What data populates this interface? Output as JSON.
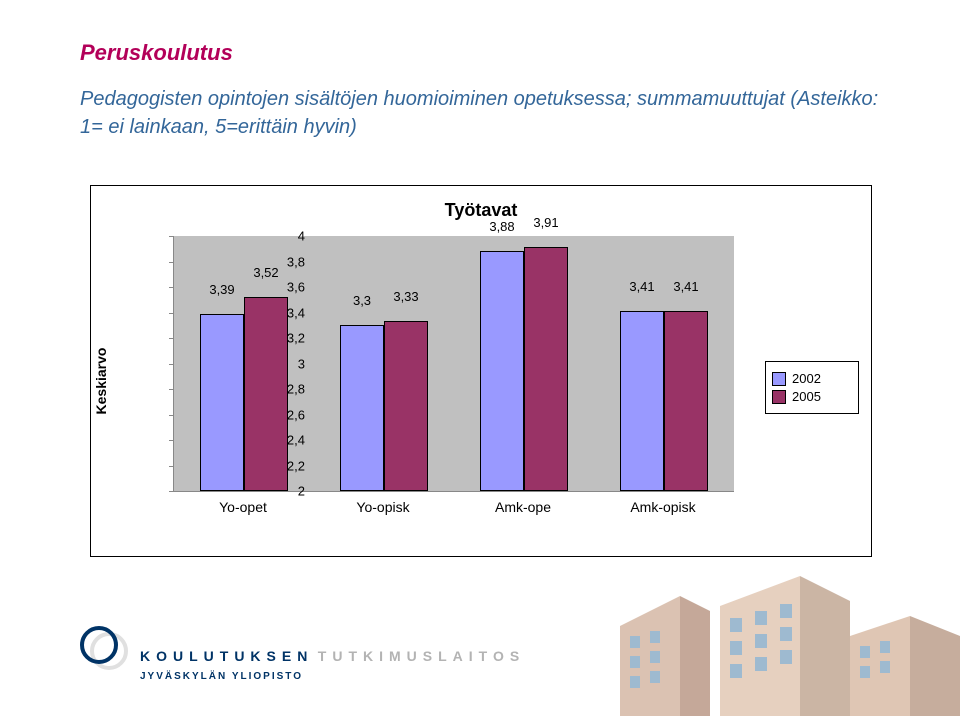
{
  "title": "Peruskoulutus",
  "subtitle": "Pedagogisten opintojen sisältöjen huomioiminen opetuksessa; summamuuttujat (Asteikko: 1= ei lainkaan, 5=erittäin hyvin)",
  "chart": {
    "type": "bar",
    "title": "Työtavat",
    "y_axis_label": "Keskiarvo",
    "y_min": 2,
    "y_max": 4,
    "y_ticks": [
      "2",
      "2,2",
      "2,4",
      "2,6",
      "2,8",
      "3",
      "3,2",
      "3,4",
      "3,6",
      "3,8",
      "4"
    ],
    "y_tick_values": [
      2,
      2.2,
      2.4,
      2.6,
      2.8,
      3,
      3.2,
      3.4,
      3.6,
      3.8,
      4
    ],
    "plot_background": "#c0c0c0",
    "categories": [
      "Yo-opet",
      "Yo-opisk",
      "Amk-ope",
      "Amk-opisk"
    ],
    "series": [
      {
        "name": "2002",
        "color": "#9999ff",
        "values": [
          3.39,
          3.3,
          3.88,
          3.41
        ],
        "labels": [
          "3,39",
          "3,3",
          "3,88",
          "3,41"
        ]
      },
      {
        "name": "2005",
        "color": "#993366",
        "values": [
          3.52,
          3.33,
          3.91,
          3.41
        ],
        "labels": [
          "3,52",
          "3,33",
          "3,91",
          "3,41"
        ]
      }
    ],
    "bar_border": "#000000",
    "legend_position": "right",
    "x_label_fontsize": 14,
    "data_label_fontsize": 13
  },
  "footer": {
    "brand_left": "KOULUTUKSEN",
    "brand_right": "TUTKIMUSLAITOS",
    "brand_sub": "JYVÄSKYLÄN YLIOPISTO",
    "brand_left_color": "#003366",
    "brand_right_color": "#b3b3b3"
  }
}
